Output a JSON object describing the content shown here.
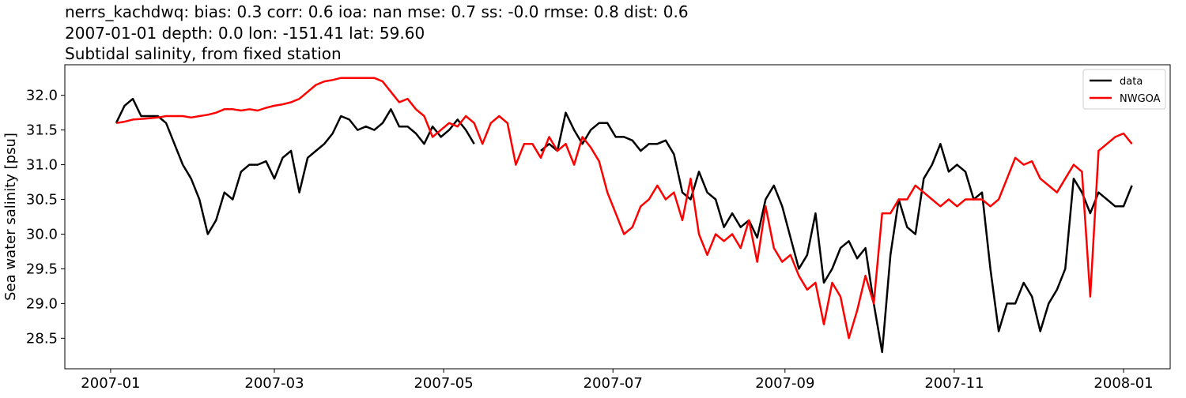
{
  "chart_data": {
    "type": "line",
    "title_lines": [
      "nerrs_kachdwq: bias: 0.3  corr: 0.6  ioa: nan  mse: 0.7  ss: -0.0  rmse: 0.8  dist: 0.6",
      "2007-01-01 depth: 0.0 lon: -151.41 lat: 59.60",
      "Subtidal salinity, from fixed station"
    ],
    "ylabel": "Sea water salinity [psu]",
    "legend": "upper right",
    "xlim": [
      -16.5,
      381.8
    ],
    "ylim": [
      28.06,
      32.44
    ],
    "xticks": [
      {
        "value": 0,
        "label": "2007-01"
      },
      {
        "value": 59,
        "label": "2007-03"
      },
      {
        "value": 120,
        "label": "2007-05"
      },
      {
        "value": 181,
        "label": "2007-07"
      },
      {
        "value": 243,
        "label": "2007-09"
      },
      {
        "value": 304,
        "label": "2007-11"
      },
      {
        "value": 365,
        "label": "2008-01"
      }
    ],
    "yticks": [
      28.5,
      {
        "value": 29,
        "label": "29.0"
      },
      29.5,
      {
        "value": 30,
        "label": "30.0"
      },
      30.5,
      {
        "value": 31,
        "label": "31.0"
      },
      31.5,
      {
        "value": 32,
        "label": "32.0"
      }
    ],
    "x": [
      2,
      5,
      8,
      11,
      14,
      17,
      20,
      23,
      26,
      29,
      32,
      35,
      38,
      41,
      44,
      47,
      50,
      53,
      56,
      59,
      62,
      65,
      68,
      71,
      74,
      77,
      80,
      83,
      86,
      89,
      92,
      95,
      98,
      101,
      104,
      107,
      110,
      113,
      116,
      119,
      122,
      125,
      128,
      131,
      134,
      137,
      140,
      143,
      146,
      149,
      152,
      155,
      158,
      161,
      164,
      167,
      170,
      173,
      176,
      179,
      182,
      185,
      188,
      191,
      194,
      197,
      200,
      203,
      206,
      209,
      212,
      215,
      218,
      221,
      224,
      227,
      230,
      233,
      236,
      239,
      242,
      245,
      248,
      251,
      254,
      257,
      260,
      263,
      266,
      269,
      272,
      275,
      278,
      281,
      284,
      287,
      290,
      293,
      296,
      299,
      302,
      305,
      308,
      311,
      314,
      317,
      320,
      323,
      326,
      329,
      332,
      335,
      338,
      341,
      344,
      347,
      350,
      353,
      356,
      359,
      362,
      365,
      368
    ],
    "series": [
      {
        "name": "data",
        "color": "#000000",
        "values": [
          31.6,
          31.85,
          31.95,
          31.7,
          31.7,
          31.7,
          31.6,
          31.3,
          31.0,
          30.8,
          30.5,
          30.0,
          30.2,
          30.6,
          30.5,
          30.9,
          31.0,
          31.0,
          31.05,
          30.8,
          31.1,
          31.2,
          30.6,
          31.1,
          31.2,
          31.3,
          31.45,
          31.7,
          31.65,
          31.5,
          31.55,
          31.5,
          31.6,
          31.8,
          31.55,
          31.55,
          31.45,
          31.3,
          31.55,
          31.4,
          31.5,
          31.65,
          31.5,
          31.3,
          null,
          null,
          null,
          null,
          null,
          null,
          null,
          31.2,
          31.3,
          31.2,
          31.75,
          31.5,
          31.3,
          31.5,
          31.6,
          31.6,
          31.4,
          31.4,
          31.35,
          31.2,
          31.3,
          31.3,
          31.35,
          31.15,
          30.6,
          30.5,
          30.9,
          30.6,
          30.5,
          30.1,
          30.3,
          30.1,
          30.2,
          29.95,
          30.5,
          30.7,
          30.4,
          29.95,
          29.5,
          29.7,
          30.3,
          29.3,
          29.5,
          29.8,
          29.9,
          29.65,
          29.8,
          29.0,
          28.3,
          29.7,
          30.5,
          30.1,
          30.0,
          30.8,
          31.0,
          31.3,
          30.9,
          31.0,
          30.9,
          30.5,
          30.6,
          29.5,
          28.6,
          29.0,
          29.0,
          29.3,
          29.1,
          28.6,
          29.0,
          29.2,
          29.5,
          30.8,
          30.6,
          30.3,
          30.6,
          30.5,
          30.4,
          30.4,
          30.7
        ]
      },
      {
        "name": "NWGOA",
        "color": "#ff0000",
        "values": [
          31.6,
          31.62,
          31.65,
          31.66,
          31.67,
          31.68,
          31.7,
          31.7,
          31.7,
          31.68,
          31.7,
          31.72,
          31.75,
          31.8,
          31.8,
          31.78,
          31.8,
          31.78,
          31.82,
          31.85,
          31.87,
          31.9,
          31.95,
          32.05,
          32.15,
          32.2,
          32.22,
          32.25,
          32.25,
          32.25,
          32.25,
          32.25,
          32.2,
          32.05,
          31.9,
          31.95,
          31.8,
          31.7,
          31.4,
          31.5,
          31.6,
          31.55,
          31.7,
          31.6,
          31.3,
          31.6,
          31.7,
          31.6,
          31.0,
          31.3,
          31.3,
          31.1,
          31.4,
          31.2,
          31.3,
          31.0,
          31.4,
          31.25,
          31.05,
          30.6,
          30.3,
          30.0,
          30.1,
          30.4,
          30.5,
          30.7,
          30.5,
          30.6,
          30.2,
          30.8,
          30.0,
          29.7,
          30.0,
          29.9,
          30.0,
          29.8,
          30.2,
          29.6,
          30.4,
          29.8,
          29.6,
          29.7,
          29.4,
          29.2,
          29.3,
          28.7,
          29.3,
          29.1,
          28.5,
          28.9,
          29.4,
          29.0,
          30.3,
          30.3,
          30.5,
          30.5,
          30.7,
          30.6,
          30.5,
          30.4,
          30.5,
          30.4,
          30.5,
          30.5,
          30.5,
          30.4,
          30.5,
          30.8,
          31.1,
          31.0,
          31.05,
          30.8,
          30.7,
          30.6,
          30.8,
          31.0,
          30.9,
          29.1,
          31.2,
          31.3,
          31.4,
          31.45,
          31.3
        ]
      }
    ]
  }
}
